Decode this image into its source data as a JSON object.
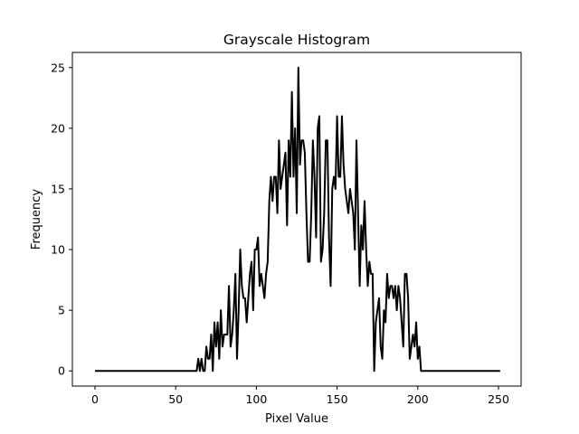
{
  "chart_data": {
    "type": "line",
    "title": "Grayscale Histogram",
    "xlabel": "Pixel Value",
    "ylabel": "Frequency",
    "xlim": [
      -14,
      264
    ],
    "ylim": [
      -1.25,
      26.25
    ],
    "grid": false,
    "x_ticks": [
      0,
      50,
      100,
      150,
      200,
      250
    ],
    "y_ticks": [
      0,
      5,
      10,
      15,
      20,
      25
    ],
    "series": [
      {
        "color": "#000000",
        "x_start": 0,
        "values": [
          0,
          0,
          0,
          0,
          0,
          0,
          0,
          0,
          0,
          0,
          0,
          0,
          0,
          0,
          0,
          0,
          0,
          0,
          0,
          0,
          0,
          0,
          0,
          0,
          0,
          0,
          0,
          0,
          0,
          0,
          0,
          0,
          0,
          0,
          0,
          0,
          0,
          0,
          0,
          0,
          0,
          0,
          0,
          0,
          0,
          0,
          0,
          0,
          0,
          0,
          0,
          0,
          0,
          0,
          0,
          0,
          0,
          0,
          0,
          0,
          0,
          0,
          0,
          0,
          1,
          0,
          1,
          0,
          0,
          2,
          1,
          1,
          3,
          0,
          4,
          2,
          4,
          1,
          5,
          2,
          3,
          3,
          3,
          7,
          2,
          3,
          5,
          8,
          1,
          5,
          10,
          7,
          6,
          6,
          4,
          6,
          8,
          9,
          5,
          10,
          10,
          11,
          7,
          8,
          7,
          6,
          8,
          9,
          14,
          16,
          14,
          16,
          16,
          13,
          19,
          15,
          16,
          17,
          18,
          12,
          19,
          16,
          23,
          16,
          20,
          13,
          25,
          17,
          19,
          19,
          18,
          13,
          9,
          9,
          13,
          19,
          16,
          11,
          20,
          21,
          9,
          10,
          13,
          19,
          19,
          11,
          7,
          15,
          16,
          15,
          21,
          16,
          16,
          21,
          17,
          15,
          14,
          13,
          15,
          14,
          13,
          10,
          19,
          13,
          7,
          12,
          10,
          14,
          10,
          7,
          9,
          8,
          8,
          0,
          4,
          5,
          6,
          2,
          1,
          5,
          4,
          8,
          6,
          7,
          7,
          6,
          7,
          5,
          7,
          6,
          4,
          2,
          8,
          8,
          6,
          1,
          2,
          3,
          2,
          4,
          1,
          2,
          0,
          0,
          0,
          0,
          0,
          0,
          0,
          0,
          0,
          0,
          0,
          0,
          0,
          0,
          0,
          0,
          0,
          0,
          0,
          0,
          0,
          0,
          0,
          0,
          0,
          0,
          0,
          0,
          0,
          0,
          0,
          0,
          0,
          0,
          0,
          0,
          0,
          0,
          0,
          0,
          0,
          0,
          0,
          0,
          0,
          0,
          0,
          0,
          0,
          0
        ]
      }
    ]
  }
}
